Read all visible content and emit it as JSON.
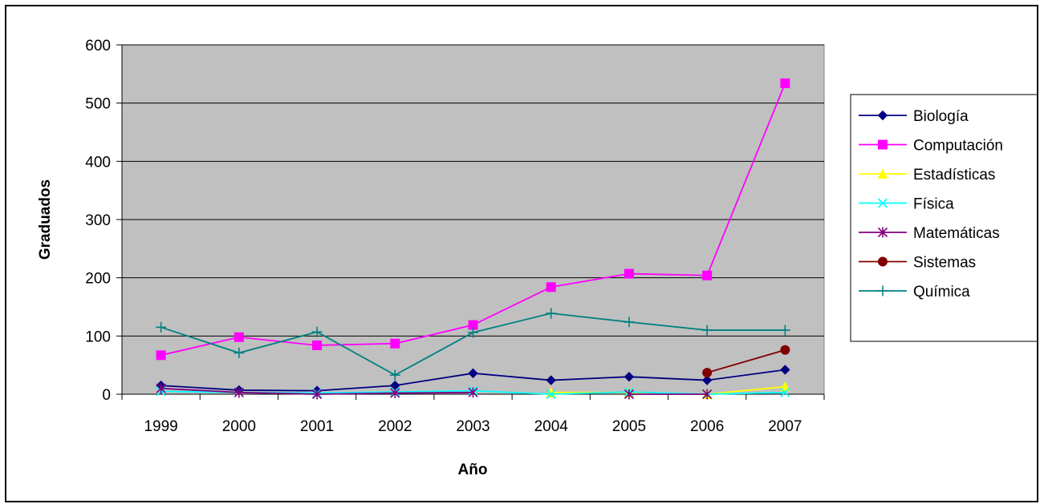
{
  "chart_data": {
    "type": "line",
    "title": "",
    "xlabel": "Año",
    "ylabel": "Graduados",
    "categories": [
      "1999",
      "2000",
      "2001",
      "2002",
      "2003",
      "2004",
      "2005",
      "2006",
      "2007"
    ],
    "ylim": [
      0,
      600
    ],
    "yticks": [
      "0",
      "100",
      "200",
      "300",
      "400",
      "500",
      "600"
    ],
    "grid": true,
    "plot_background": "#c0c0c0",
    "legend_position": "right",
    "series": [
      {
        "name": "Biología",
        "color": "#000080",
        "marker": "diamond",
        "values": [
          15,
          7,
          6,
          15,
          36,
          24,
          30,
          24,
          42
        ]
      },
      {
        "name": "Computación",
        "color": "#ff00ff",
        "marker": "square",
        "values": [
          67,
          98,
          84,
          87,
          119,
          184,
          207,
          204,
          534
        ]
      },
      {
        "name": "Estadísticas",
        "color": "#ffff00",
        "marker": "triangle",
        "values": [
          null,
          null,
          null,
          null,
          null,
          3,
          3,
          0,
          13
        ]
      },
      {
        "name": "Física",
        "color": "#00ffff",
        "marker": "x",
        "values": [
          5,
          3,
          2,
          4,
          6,
          0,
          4,
          0,
          3
        ]
      },
      {
        "name": "Matemáticas",
        "color": "#800080",
        "marker": "star",
        "values": [
          10,
          3,
          0,
          2,
          3,
          null,
          0,
          0,
          null
        ]
      },
      {
        "name": "Sistemas",
        "color": "#800000",
        "marker": "circle",
        "values": [
          null,
          null,
          null,
          null,
          null,
          null,
          null,
          37,
          76
        ]
      },
      {
        "name": "Química",
        "color": "#008080",
        "marker": "plus",
        "values": [
          115,
          71,
          107,
          33,
          106,
          139,
          124,
          110,
          110
        ]
      }
    ]
  }
}
